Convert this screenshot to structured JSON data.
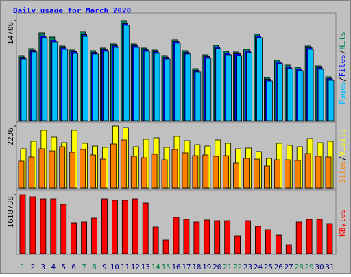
{
  "chart_data": [
    {
      "type": "bar",
      "title": "Daily usage for March 2020",
      "categories": [
        "1",
        "2",
        "3",
        "4",
        "5",
        "6",
        "7",
        "8",
        "9",
        "10",
        "11",
        "12",
        "13",
        "14",
        "15",
        "16",
        "17",
        "18",
        "19",
        "20",
        "21",
        "22",
        "23",
        "24",
        "25",
        "26",
        "27",
        "28",
        "29",
        "30",
        "31"
      ],
      "category_colors": [
        "#008040",
        "#000080",
        "#000080",
        "#000080",
        "#000080",
        "#000080",
        "#008040",
        "#008040",
        "#000080",
        "#000080",
        "#000080",
        "#000080",
        "#000080",
        "#008040",
        "#008040",
        "#000080",
        "#000080",
        "#000080",
        "#000080",
        "#000080",
        "#008040",
        "#008040",
        "#000080",
        "#000080",
        "#000080",
        "#000080",
        "#000080",
        "#008040",
        "#008040",
        "#000080",
        "#000080"
      ],
      "legend_separator": "/",
      "series": [
        {
          "name": "Hits",
          "color": "#00805c",
          "values": [
            9567,
            10574,
            12890,
            12285,
            10976,
            10372,
            13091,
            10271,
            10674,
            11278,
            14706,
            11278,
            10674,
            10372,
            9567,
            11883,
            10271,
            7653,
            9667,
            11077,
            10171,
            10070,
            10473,
            12688,
            6344,
            8862,
            8157,
            7855,
            10976,
            8056,
            6445
          ]
        },
        {
          "name": "Files",
          "color": "#0000ff",
          "values": [
            9310,
            10320,
            12440,
            11830,
            10720,
            10120,
            12640,
            10020,
            10420,
            11020,
            14250,
            11020,
            10420,
            10120,
            9310,
            11630,
            10020,
            7400,
            9410,
            10820,
            9920,
            9810,
            10220,
            12430,
            6090,
            8610,
            7900,
            7600,
            10720,
            7800,
            6190
          ]
        },
        {
          "name": "Pages",
          "color": "#00c0ff",
          "values": [
            9060,
            10070,
            12185,
            11580,
            10470,
            9870,
            12385,
            9770,
            10170,
            10770,
            14000,
            10770,
            10170,
            9870,
            9060,
            11380,
            9770,
            7150,
            9160,
            10570,
            9670,
            9560,
            9970,
            12180,
            5840,
            8360,
            7650,
            7350,
            10470,
            7550,
            5940
          ]
        }
      ],
      "ylim": [
        0,
        15500
      ],
      "yticks": [
        14706
      ]
    },
    {
      "type": "bar",
      "series": [
        {
          "name": "Visits",
          "color": "#ffff00",
          "values": [
            1416,
            1689,
            2087,
            1838,
            1639,
            2087,
            1615,
            1515,
            1466,
            2236,
            2186,
            1490,
            1764,
            1813,
            1466,
            1863,
            1714,
            1565,
            1515,
            1739,
            1615,
            1416,
            1441,
            1317,
            1068,
            1615,
            1540,
            1490,
            1789,
            1639,
            1689
          ]
        },
        {
          "name": "Sites",
          "color": "#ff8000",
          "values": [
            969,
            1118,
            1416,
            1341,
            1490,
            1292,
            1391,
            1192,
            1043,
            1590,
            1739,
            1143,
            1093,
            1217,
            1018,
            1391,
            1267,
            1167,
            1192,
            1143,
            1167,
            894,
            1068,
            1043,
            795,
            1018,
            1018,
            994,
            1242,
            1143,
            1118
          ]
        }
      ],
      "ylim": [
        0,
        2310
      ],
      "yticks": [
        2236
      ]
    },
    {
      "type": "bar",
      "series": [
        {
          "name": "KBytes",
          "color": "#ff0000",
          "values": [
            1618738,
            1562309,
            1505840,
            1505840,
            1355256,
            847035,
            865858,
            978796,
            1505840,
            1468194,
            1468194,
            1505840,
            1392902,
            734097,
            376460,
            997619,
            941150,
            865858,
            922327,
            903504,
            903504,
            489398,
            903504,
            752920,
            658805,
            508221,
            244699,
            865858,
            941150,
            941150,
            828212
          ]
        }
      ],
      "ylim": [
        0,
        1694000
      ],
      "yticks": [
        1618738
      ]
    }
  ]
}
